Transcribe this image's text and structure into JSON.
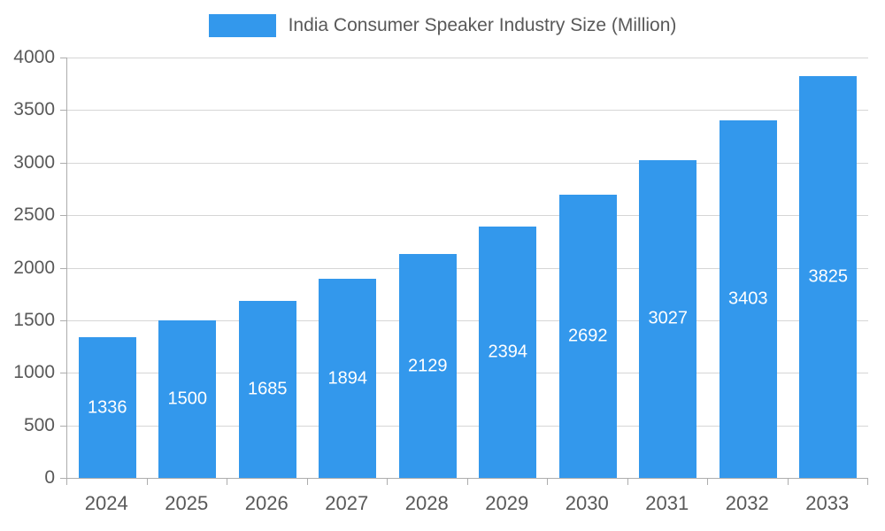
{
  "chart_data": {
    "type": "bar",
    "title": "India Consumer Speaker Industry Size (Million)",
    "categories": [
      "2024",
      "2025",
      "2026",
      "2027",
      "2028",
      "2029",
      "2030",
      "2031",
      "2032",
      "2033"
    ],
    "values": [
      1336,
      1500,
      1685,
      1894,
      2129,
      2394,
      2692,
      3027,
      3403,
      3825
    ],
    "xlabel": "",
    "ylabel": "",
    "ylim": [
      0,
      4000
    ],
    "ytick_step": 500,
    "grid": true,
    "legend_position": "top-center",
    "colors": {
      "bar": "#3398EC",
      "value_label": "#ffffff",
      "axis_text": "#595959",
      "gridline": "#d6d6d6",
      "axis_line": "#adadad"
    }
  }
}
